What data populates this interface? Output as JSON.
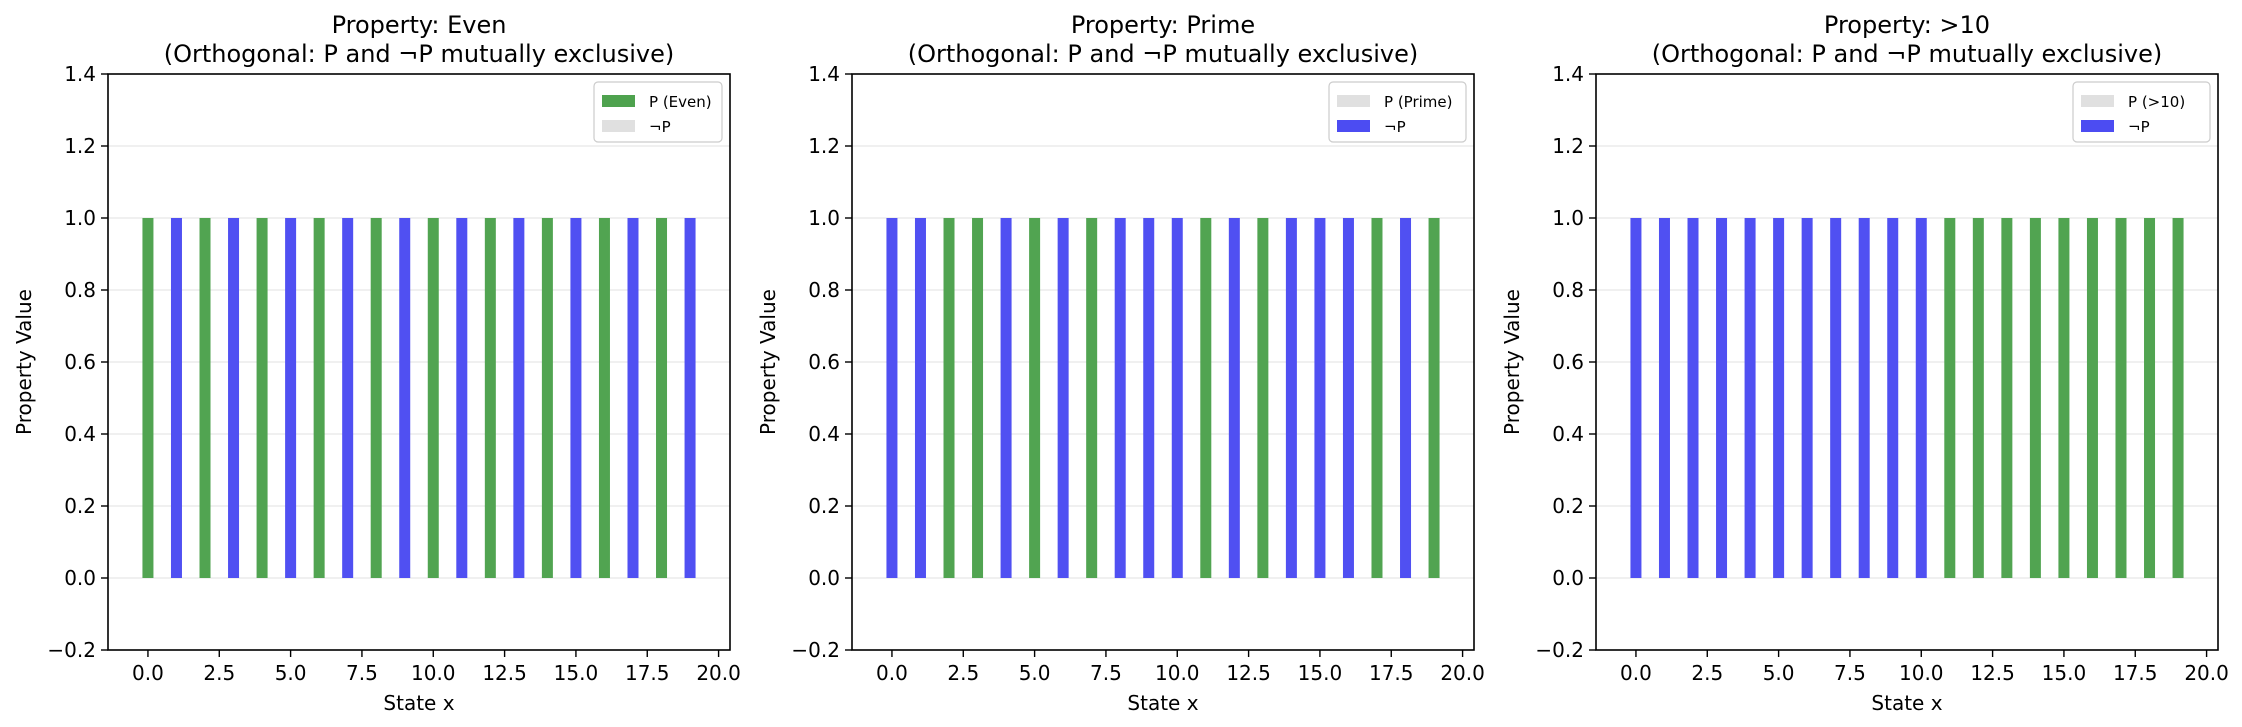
{
  "colors": {
    "p_color": "#4ea24e",
    "notp_color": "#4c4cf2",
    "inactive_color": "#e0e0e0",
    "grid_color": "#e6e6e6"
  },
  "chart_data": [
    {
      "type": "bar",
      "title_line1": "Property: Even",
      "title_line2": "(Orthogonal: P and ¬P mutually exclusive)",
      "xlabel": "State x",
      "ylabel": "Property Value",
      "xlim": [
        -1.4,
        20.4
      ],
      "ylim": [
        -0.2,
        1.4
      ],
      "x_ticks": [
        0.0,
        2.5,
        5.0,
        7.5,
        10.0,
        12.5,
        15.0,
        17.5,
        20.0
      ],
      "x_tick_labels": [
        "0.0",
        "2.5",
        "5.0",
        "7.5",
        "10.0",
        "12.5",
        "15.0",
        "17.5",
        "20.0"
      ],
      "y_ticks": [
        -0.2,
        0.0,
        0.2,
        0.4,
        0.6,
        0.8,
        1.0,
        1.2,
        1.4
      ],
      "y_tick_labels": [
        "−0.2",
        "0.0",
        "0.2",
        "0.4",
        "0.6",
        "0.8",
        "1.0",
        "1.2",
        "1.4"
      ],
      "grid": true,
      "legend_position": "top-right",
      "legend": [
        {
          "label": "P (Even)",
          "active": true,
          "series": "P"
        },
        {
          "label": "¬P",
          "active": false,
          "series": "notP"
        }
      ],
      "series": [
        {
          "name": "P (Even)",
          "color": "#4ea24e",
          "x": [
            0,
            2,
            4,
            6,
            8,
            10,
            12,
            14,
            16,
            18
          ],
          "values": [
            1,
            1,
            1,
            1,
            1,
            1,
            1,
            1,
            1,
            1
          ]
        },
        {
          "name": "¬P",
          "color": "#4c4cf2",
          "x": [
            1,
            3,
            5,
            7,
            9,
            11,
            13,
            15,
            17,
            19
          ],
          "values": [
            1,
            1,
            1,
            1,
            1,
            1,
            1,
            1,
            1,
            1
          ]
        }
      ]
    },
    {
      "type": "bar",
      "title_line1": "Property: Prime",
      "title_line2": "(Orthogonal: P and ¬P mutually exclusive)",
      "xlabel": "State x",
      "ylabel": "Property Value",
      "xlim": [
        -1.4,
        20.4
      ],
      "ylim": [
        -0.2,
        1.4
      ],
      "x_ticks": [
        0.0,
        2.5,
        5.0,
        7.5,
        10.0,
        12.5,
        15.0,
        17.5,
        20.0
      ],
      "x_tick_labels": [
        "0.0",
        "2.5",
        "5.0",
        "7.5",
        "10.0",
        "12.5",
        "15.0",
        "17.5",
        "20.0"
      ],
      "y_ticks": [
        -0.2,
        0.0,
        0.2,
        0.4,
        0.6,
        0.8,
        1.0,
        1.2,
        1.4
      ],
      "y_tick_labels": [
        "−0.2",
        "0.0",
        "0.2",
        "0.4",
        "0.6",
        "0.8",
        "1.0",
        "1.2",
        "1.4"
      ],
      "grid": true,
      "legend_position": "top-right",
      "legend": [
        {
          "label": "P (Prime)",
          "active": false,
          "series": "P"
        },
        {
          "label": "¬P",
          "active": true,
          "series": "notP"
        }
      ],
      "series": [
        {
          "name": "P (Prime)",
          "color": "#4ea24e",
          "x": [
            2,
            3,
            5,
            7,
            11,
            13,
            17,
            19
          ],
          "values": [
            1,
            1,
            1,
            1,
            1,
            1,
            1,
            1
          ]
        },
        {
          "name": "¬P",
          "color": "#4c4cf2",
          "x": [
            0,
            1,
            4,
            6,
            8,
            9,
            10,
            12,
            14,
            15,
            16,
            18
          ],
          "values": [
            1,
            1,
            1,
            1,
            1,
            1,
            1,
            1,
            1,
            1,
            1,
            1
          ]
        }
      ]
    },
    {
      "type": "bar",
      "title_line1": "Property: >10",
      "title_line2": "(Orthogonal: P and ¬P mutually exclusive)",
      "xlabel": "State x",
      "ylabel": "Property Value",
      "xlim": [
        -1.4,
        20.4
      ],
      "ylim": [
        -0.2,
        1.4
      ],
      "x_ticks": [
        0.0,
        2.5,
        5.0,
        7.5,
        10.0,
        12.5,
        15.0,
        17.5,
        20.0
      ],
      "x_tick_labels": [
        "0.0",
        "2.5",
        "5.0",
        "7.5",
        "10.0",
        "12.5",
        "15.0",
        "17.5",
        "20.0"
      ],
      "y_ticks": [
        -0.2,
        0.0,
        0.2,
        0.4,
        0.6,
        0.8,
        1.0,
        1.2,
        1.4
      ],
      "y_tick_labels": [
        "−0.2",
        "0.0",
        "0.2",
        "0.4",
        "0.6",
        "0.8",
        "1.0",
        "1.2",
        "1.4"
      ],
      "grid": true,
      "legend_position": "top-right",
      "legend": [
        {
          "label": "P (>10)",
          "active": false,
          "series": "P"
        },
        {
          "label": "¬P",
          "active": true,
          "series": "notP"
        }
      ],
      "series": [
        {
          "name": "P (>10)",
          "color": "#4ea24e",
          "x": [
            11,
            12,
            13,
            14,
            15,
            16,
            17,
            18,
            19
          ],
          "values": [
            1,
            1,
            1,
            1,
            1,
            1,
            1,
            1,
            1
          ]
        },
        {
          "name": "¬P",
          "color": "#4c4cf2",
          "x": [
            0,
            1,
            2,
            3,
            4,
            5,
            6,
            7,
            8,
            9,
            10
          ],
          "values": [
            1,
            1,
            1,
            1,
            1,
            1,
            1,
            1,
            1,
            1,
            1
          ]
        }
      ]
    }
  ]
}
